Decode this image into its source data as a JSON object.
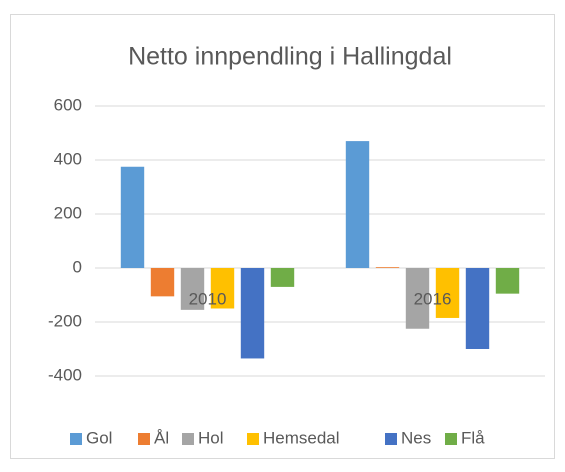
{
  "chart_data": {
    "type": "bar",
    "title": "Netto innpendling i Hallingdal",
    "categories": [
      "2010",
      "2016"
    ],
    "series": [
      {
        "name": "Gol",
        "color": "#5b9bd5",
        "values": [
          375,
          470
        ]
      },
      {
        "name": "Ål",
        "color": "#ed7d31",
        "values": [
          -105,
          3
        ]
      },
      {
        "name": "Hol",
        "color": "#a5a5a5",
        "values": [
          -155,
          -225
        ]
      },
      {
        "name": "Hemsedal",
        "color": "#ffc000",
        "values": [
          -150,
          -185
        ]
      },
      {
        "name": "Nes",
        "color": "#4472c4",
        "values": [
          -335,
          -300
        ]
      },
      {
        "name": "Flå",
        "color": "#70ad47",
        "values": [
          -70,
          -95
        ]
      }
    ],
    "ylim": [
      -400,
      600
    ],
    "yticks": [
      -400,
      -200,
      0,
      200,
      400,
      600
    ],
    "grid": true,
    "legend": "bottom"
  }
}
